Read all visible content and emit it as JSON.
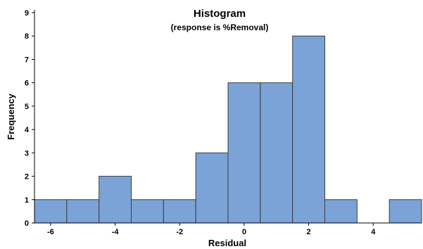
{
  "chart_data": {
    "type": "bar",
    "title": "Histogram",
    "subtitle": "(response is %Removal)",
    "xlabel": "Residual",
    "ylabel": "Frequency",
    "xlim": [
      -6.5,
      5.5
    ],
    "ylim": [
      0,
      9
    ],
    "x_ticks": [
      -6,
      -4,
      -2,
      0,
      2,
      4
    ],
    "y_ticks": [
      0,
      1,
      2,
      3,
      4,
      5,
      6,
      7,
      8,
      9
    ],
    "bin_width": 1,
    "bin_centers": [
      -6,
      -5,
      -4,
      -3,
      -2,
      -1,
      0,
      1,
      2,
      3,
      4,
      5
    ],
    "values": [
      1,
      1,
      2,
      1,
      1,
      3,
      6,
      6,
      8,
      1,
      0,
      1
    ],
    "bar_color": "#7ba3d8",
    "bar_edge_color": "#3c3c3c",
    "grid": false
  }
}
